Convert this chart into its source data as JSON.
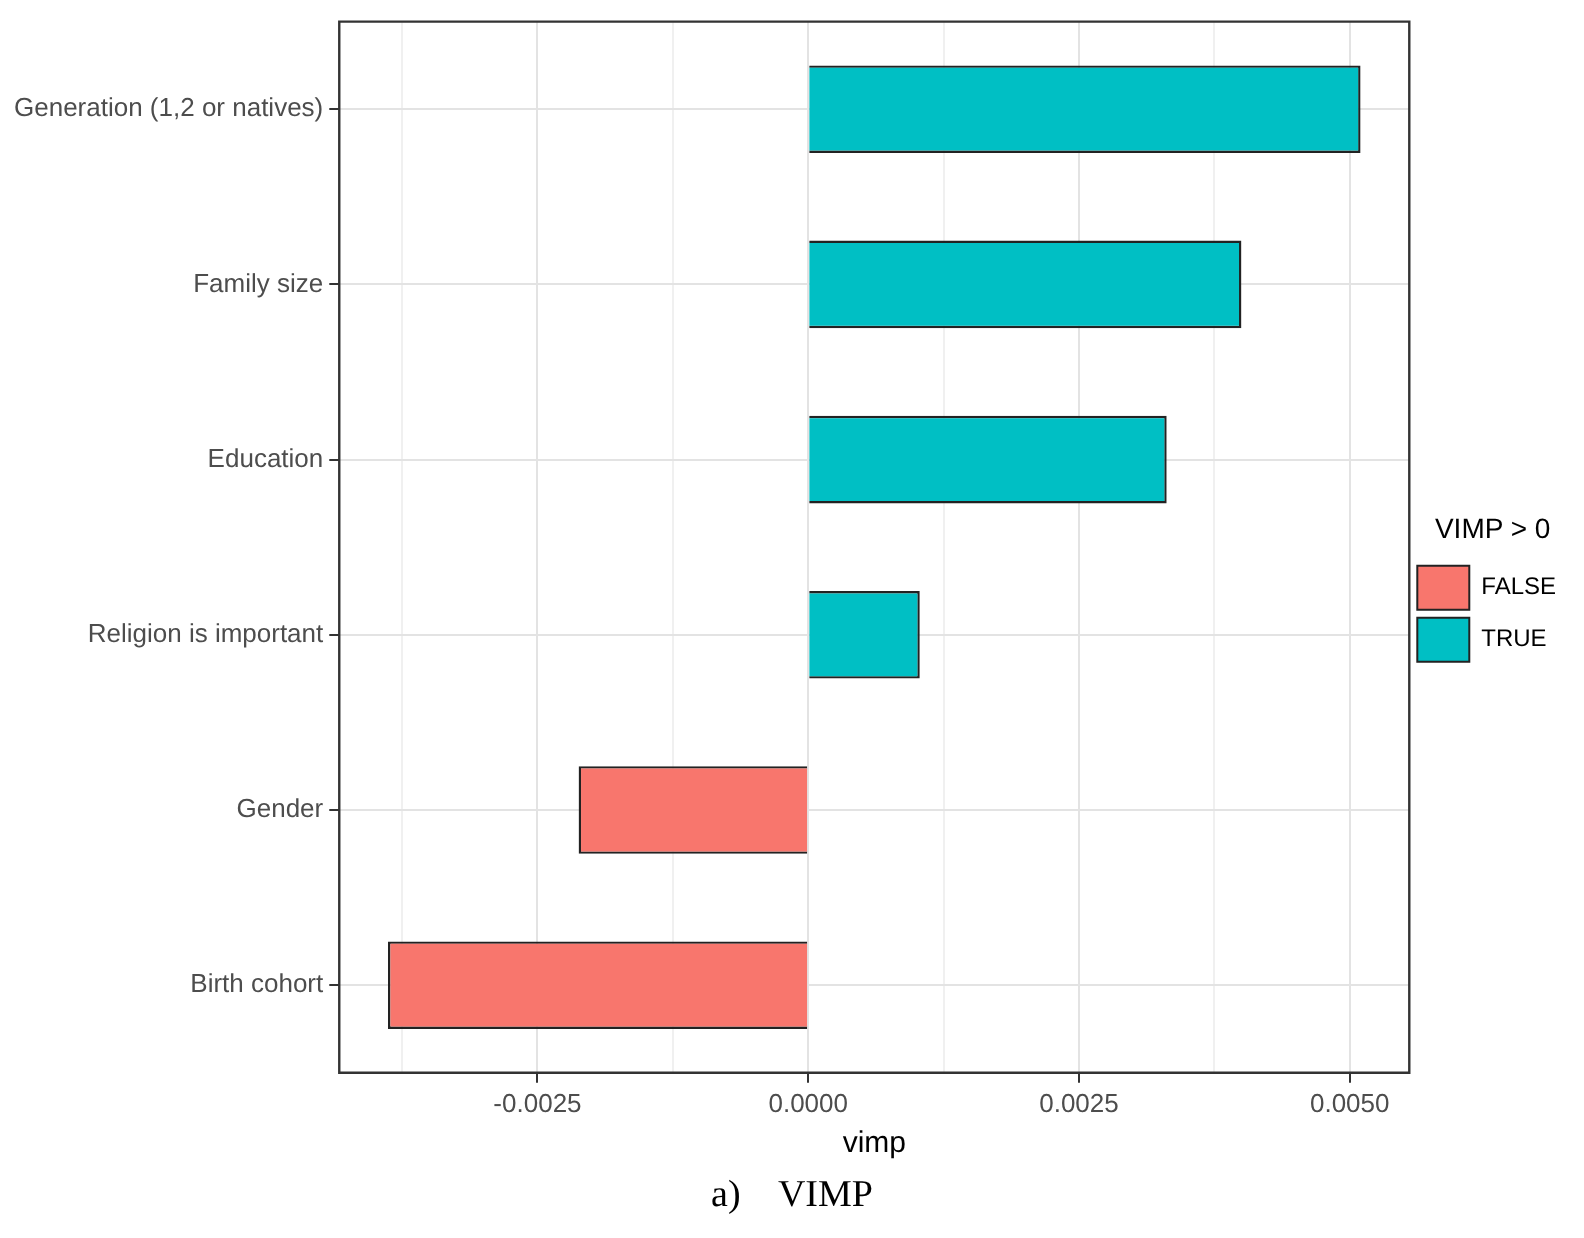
{
  "chart_data": {
    "type": "bar",
    "orientation": "horizontal",
    "xlabel": "vimp",
    "legend_title": "VIMP > 0",
    "legend": "right",
    "categories": [
      "Generation (1,2 or natives)",
      "Family size",
      "Education",
      "Religion is important",
      "Gender",
      "Birth cohort"
    ],
    "series": [
      {
        "name": "FALSE",
        "color": "#f8766d",
        "values": [
          null,
          null,
          null,
          null,
          -0.00212,
          -0.00388
        ]
      },
      {
        "name": "TRUE",
        "color": "#00bfc4",
        "values": [
          0.0051,
          0.004,
          0.00331,
          0.00103,
          null,
          null
        ]
      }
    ],
    "xlim": [
      -0.00433,
      0.00555
    ],
    "xticks": [
      {
        "value": -0.00375,
        "label": null
      },
      {
        "value": -0.0025,
        "label": "-0.0025"
      },
      {
        "value": -0.00125,
        "label": null
      },
      {
        "value": 0,
        "label": "0.0000"
      },
      {
        "value": 0.00125,
        "label": null
      },
      {
        "value": 0.0025,
        "label": "0.0025"
      },
      {
        "value": 0.00375,
        "label": null
      },
      {
        "value": 0.005,
        "label": "0.0050"
      }
    ],
    "grid": true,
    "annotations": [
      "a)    VIMP"
    ]
  }
}
